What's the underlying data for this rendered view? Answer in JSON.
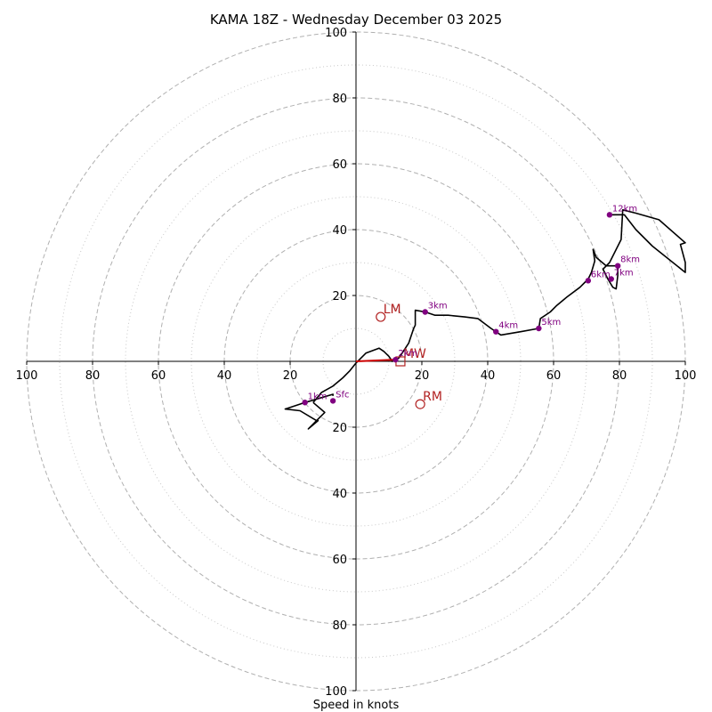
{
  "chart_data": {
    "type": "hodograph",
    "title": "KAMA 18Z - Wednesday December 03 2025",
    "xlabel": "Speed in knots",
    "range": [
      -100,
      100
    ],
    "rings_major": [
      20,
      40,
      60,
      80,
      100
    ],
    "rings_minor": [
      10,
      30,
      50,
      70,
      90
    ],
    "tick_labels": [
      "100",
      "80",
      "60",
      "40",
      "20",
      "20",
      "40",
      "60",
      "80",
      "100"
    ],
    "tick_values": [
      -100,
      -80,
      -60,
      -40,
      -20,
      20,
      40,
      60,
      80,
      100
    ],
    "y_tick_labels_top": [
      "100",
      "80",
      "60",
      "40",
      "20"
    ],
    "y_tick_labels_bottom": [
      "20",
      "40",
      "60",
      "80",
      "100"
    ],
    "trace_color": "#000000",
    "marker_color": "#800080",
    "motion_color": "#b22222",
    "trace": [
      [
        -13,
        -12.5
      ],
      [
        -10.5,
        -9.5
      ],
      [
        -7,
        -7.5
      ],
      [
        -4,
        -5
      ],
      [
        -2,
        -3
      ],
      [
        0,
        -0.5
      ],
      [
        3,
        2.5
      ],
      [
        7,
        4
      ],
      [
        8.5,
        3
      ],
      [
        10,
        1.5
      ],
      [
        11,
        0
      ],
      [
        12,
        0.5
      ],
      [
        13,
        1
      ],
      [
        14,
        2.5
      ],
      [
        16,
        5.5
      ],
      [
        17.5,
        10
      ],
      [
        18,
        11
      ],
      [
        18,
        15.5
      ],
      [
        21,
        15
      ],
      [
        24,
        14
      ],
      [
        28,
        14
      ],
      [
        33,
        13.5
      ],
      [
        37,
        13
      ],
      [
        41,
        10
      ],
      [
        44,
        8
      ],
      [
        47,
        8.5
      ],
      [
        50,
        9
      ],
      [
        55.5,
        10
      ],
      [
        56,
        13
      ],
      [
        59,
        15
      ],
      [
        61,
        17
      ],
      [
        64,
        19.5
      ],
      [
        68,
        22.5
      ],
      [
        70.5,
        25
      ],
      [
        71.5,
        27
      ],
      [
        72.5,
        30.5
      ],
      [
        72,
        34
      ],
      [
        73,
        31.5
      ],
      [
        76,
        29
      ],
      [
        77.5,
        29
      ],
      [
        79.5,
        29
      ],
      [
        79.5,
        26
      ],
      [
        79,
        22
      ],
      [
        78,
        22.5
      ],
      [
        76.5,
        25
      ],
      [
        76,
        26
      ],
      [
        75,
        28
      ],
      [
        77,
        30
      ],
      [
        80.5,
        37
      ],
      [
        81,
        46
      ],
      [
        85,
        45
      ],
      [
        92,
        43
      ],
      [
        100,
        36
      ],
      [
        98.5,
        35.5
      ],
      [
        100,
        30
      ],
      [
        100,
        27
      ],
      [
        90,
        35
      ],
      [
        85,
        40
      ],
      [
        81.5,
        44.5
      ],
      [
        77,
        44.5
      ]
    ],
    "trace_low": [
      [
        -13,
        -12.5
      ],
      [
        -9.5,
        -15.5
      ],
      [
        -11,
        -17
      ],
      [
        -14.5,
        -20.5
      ],
      [
        -11.5,
        -18
      ],
      [
        -12,
        -18
      ],
      [
        -17,
        -15
      ],
      [
        -21.5,
        -14.5
      ],
      [
        -15.5,
        -12.5
      ],
      [
        -7,
        -10
      ],
      [
        -7,
        -10.5
      ]
    ],
    "points": [
      {
        "label": "Sfc",
        "u": -7,
        "v": -12
      },
      {
        "label": "1km",
        "u": -15.5,
        "v": -12.5
      },
      {
        "label": "2km",
        "u": 12,
        "v": 0.5
      },
      {
        "label": "3km",
        "u": 21,
        "v": 15
      },
      {
        "label": "4km",
        "u": 42.5,
        "v": 9
      },
      {
        "label": "5km",
        "u": 55.5,
        "v": 10
      },
      {
        "label": "6km",
        "u": 70.5,
        "v": 24.5
      },
      {
        "label": "7km",
        "u": 77.5,
        "v": 25
      },
      {
        "label": "8km",
        "u": 79.5,
        "v": 29
      },
      {
        "label": "12km",
        "u": 77,
        "v": 44.5
      }
    ],
    "motions": [
      {
        "label": "LM",
        "u": 7.5,
        "v": 13.5,
        "marker": "circle"
      },
      {
        "label": "RM",
        "u": 19.5,
        "v": -13,
        "marker": "circle"
      },
      {
        "label": "MW",
        "u": 13.5,
        "v": 0,
        "marker": "square"
      }
    ],
    "shear_vector": {
      "u1": 0,
      "v1": 0,
      "u2": 12,
      "v2": 0.5
    }
  }
}
